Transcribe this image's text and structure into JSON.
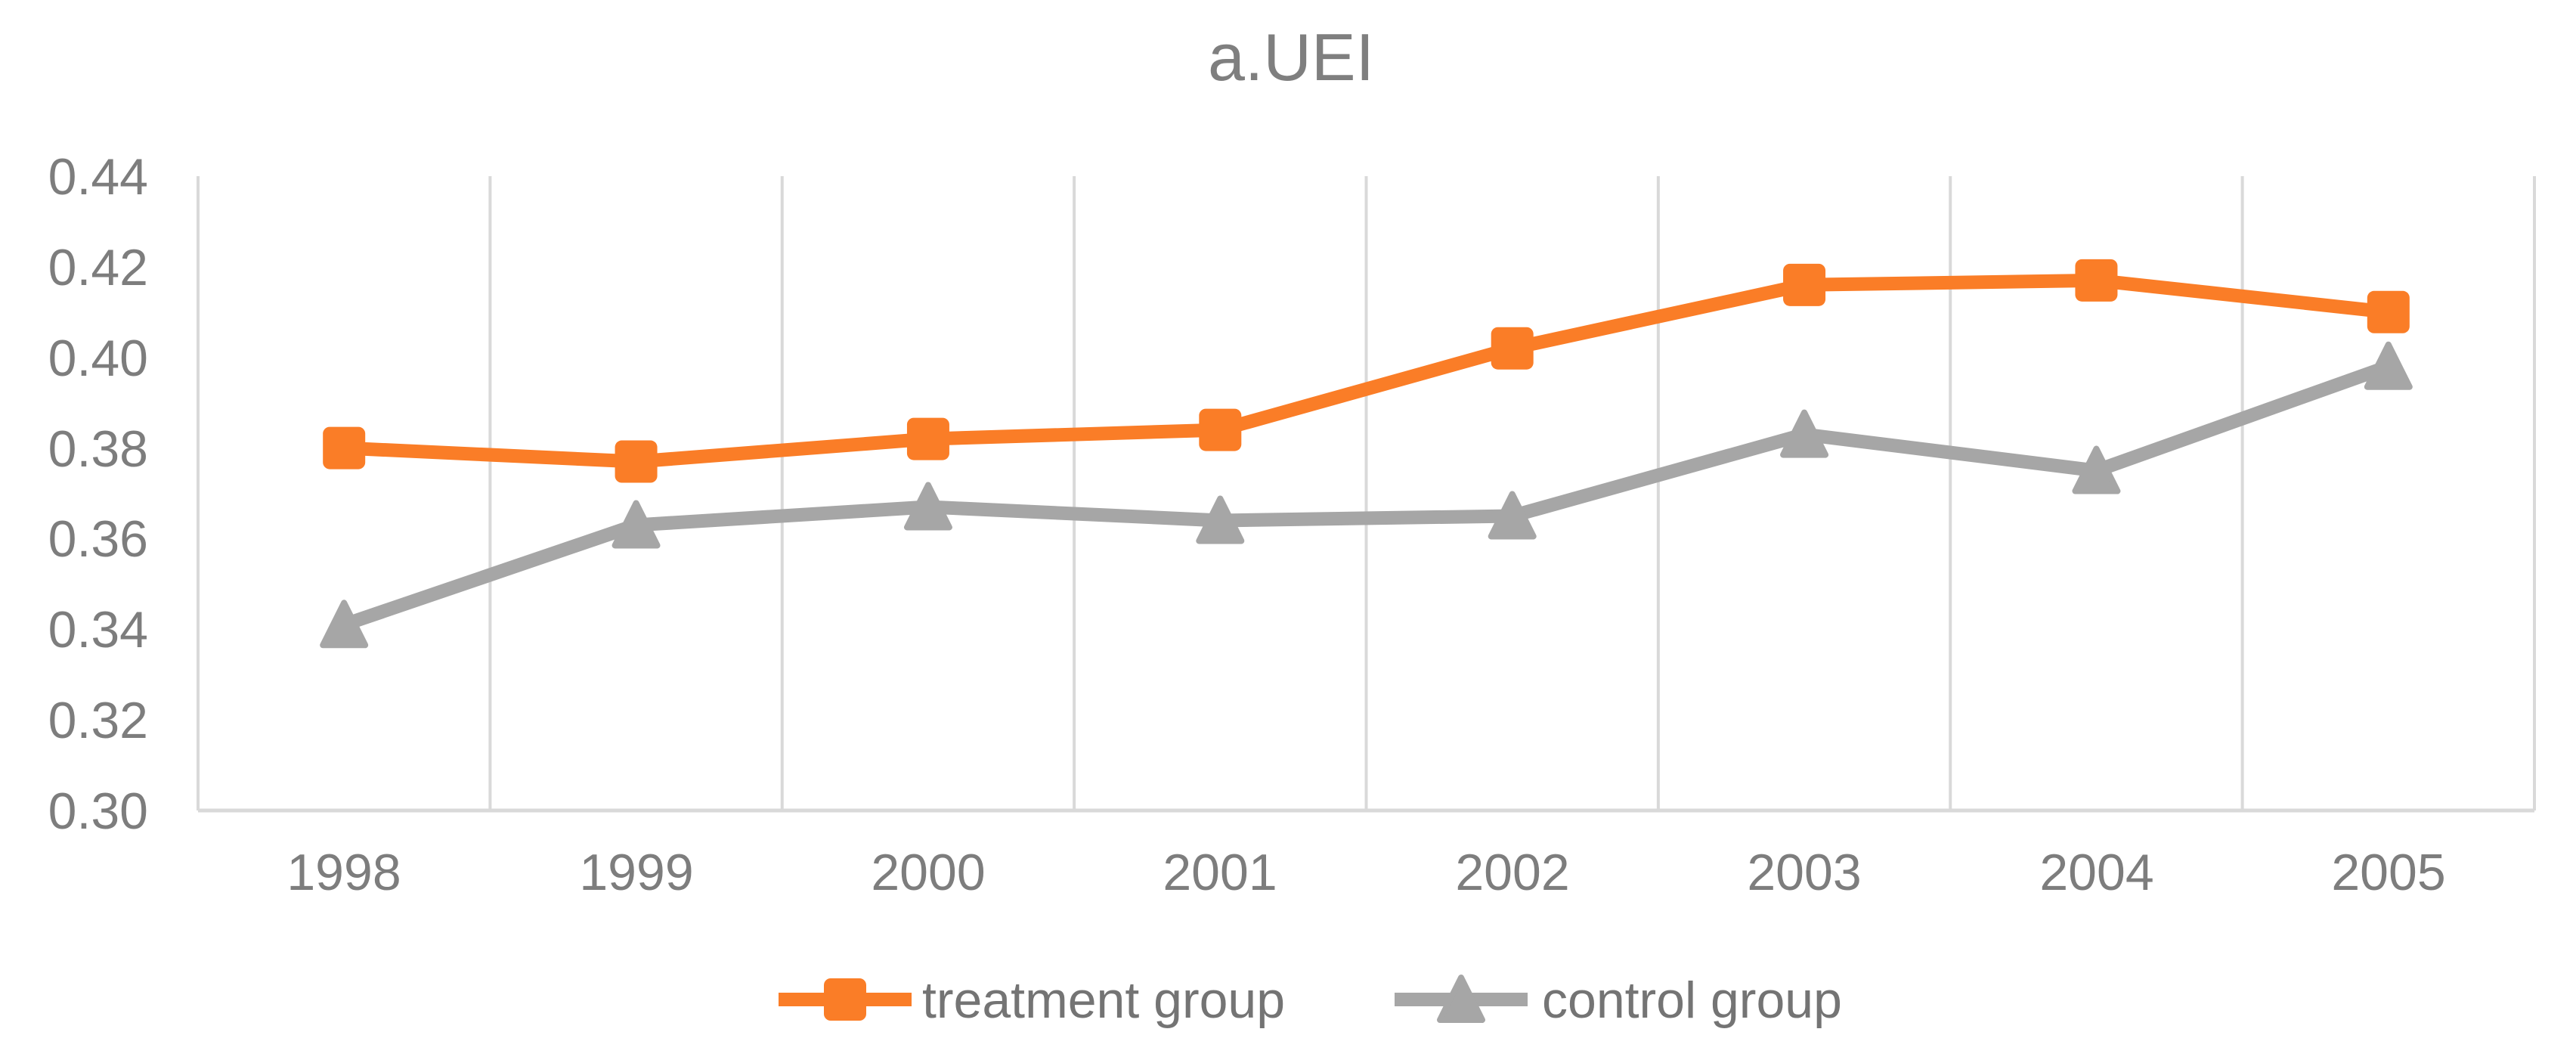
{
  "title": "a.UEI",
  "colors": {
    "treatment_series": "#FA7D27",
    "control_series": "#A6A6A6",
    "gridline": "#D9D9D9",
    "axis_line": "#D9D9D9",
    "tick_text": "#7D7D7D",
    "title_text": "#7F7F7F",
    "background": "#FFFFFF"
  },
  "chart_data": {
    "type": "line",
    "title": "a.UEI",
    "categories": [
      "1998",
      "1999",
      "2000",
      "2001",
      "2002",
      "2003",
      "2004",
      "2005"
    ],
    "series": [
      {
        "name": "treatment group",
        "marker": "square",
        "color": "#FA7D27",
        "values": [
          0.38,
          0.377,
          0.382,
          0.384,
          0.402,
          0.416,
          0.417,
          0.41
        ]
      },
      {
        "name": "control group",
        "marker": "triangle",
        "color": "#A6A6A6",
        "values": [
          0.341,
          0.363,
          0.367,
          0.364,
          0.365,
          0.383,
          0.375,
          0.398
        ]
      }
    ],
    "xlabel": "",
    "ylabel": "",
    "ylim": [
      0.3,
      0.44
    ],
    "ytick_step": 0.02,
    "ytick_labels": [
      "0.44",
      "0.42",
      "0.40",
      "0.38",
      "0.36",
      "0.34",
      "0.32",
      "0.30"
    ],
    "grid": "vertical-only",
    "legend_position": "bottom"
  }
}
